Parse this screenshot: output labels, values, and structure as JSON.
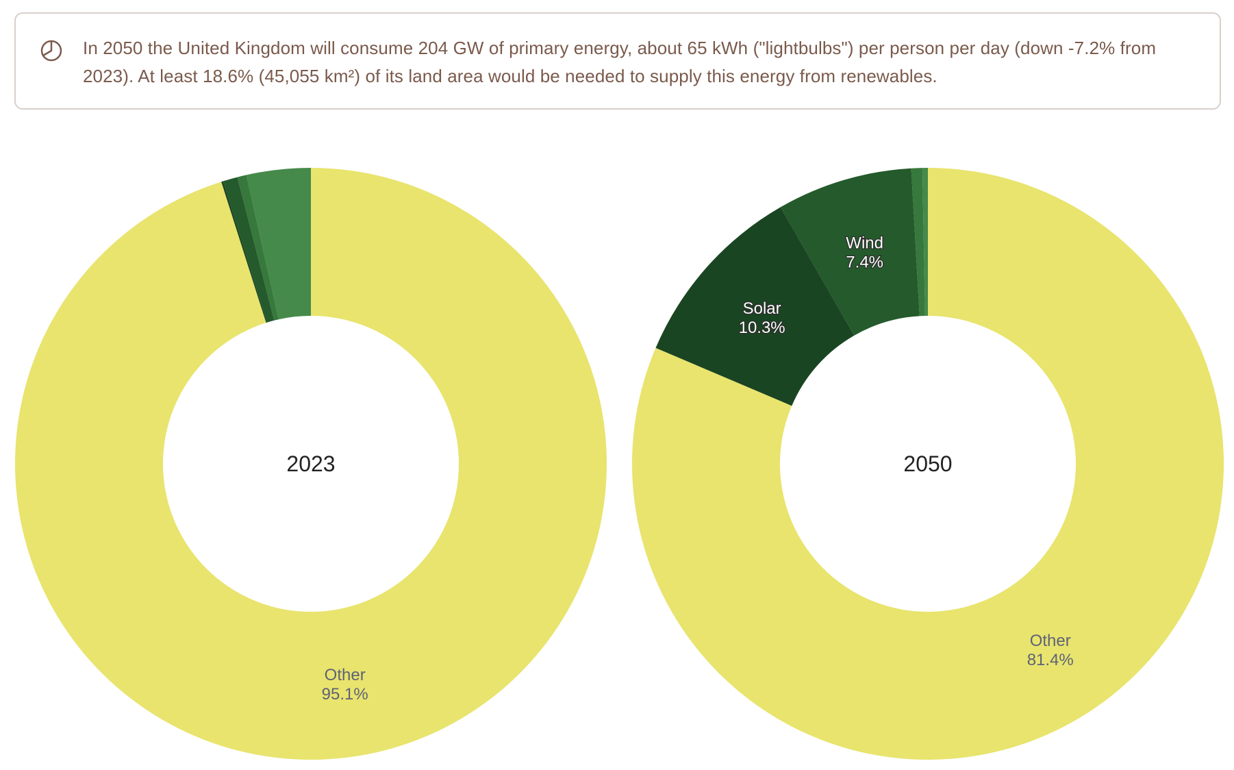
{
  "summary": {
    "icon": "pie-chart-icon",
    "text": "In 2050 the United Kingdom will consume 204 GW of primary energy, about 65 kWh (\"lightbulbs\") per person per day (down -7.2% from 2023). At least 18.6% (45,055 km²) of its land area would be needed to supply this energy from renewables."
  },
  "chart_data": [
    {
      "type": "pie",
      "donut": true,
      "center_label": "2023",
      "slices": [
        {
          "name": "",
          "value": 3.5,
          "color": "#458a4a",
          "label": ""
        },
        {
          "name": "",
          "value": 0.5,
          "color": "#37783d",
          "label": ""
        },
        {
          "name": "",
          "value": 0.8,
          "color": "#255a2c",
          "label": ""
        },
        {
          "name": "",
          "value": 0.1,
          "color": "#1a4522",
          "label": ""
        },
        {
          "name": "Other",
          "value": 95.1,
          "color": "#e8e46e",
          "label": "95.1%"
        }
      ]
    },
    {
      "type": "pie",
      "donut": true,
      "center_label": "2050",
      "slices": [
        {
          "name": "",
          "value": 0.3,
          "color": "#458a4a",
          "label": ""
        },
        {
          "name": "",
          "value": 0.6,
          "color": "#37783d",
          "label": ""
        },
        {
          "name": "Wind",
          "value": 7.4,
          "color": "#255a2c",
          "label": "7.4%"
        },
        {
          "name": "Solar",
          "value": 10.3,
          "color": "#1a4522",
          "label": "10.3%"
        },
        {
          "name": "Other",
          "value": 81.4,
          "color": "#e8e46e",
          "label": "81.4%"
        }
      ]
    }
  ]
}
